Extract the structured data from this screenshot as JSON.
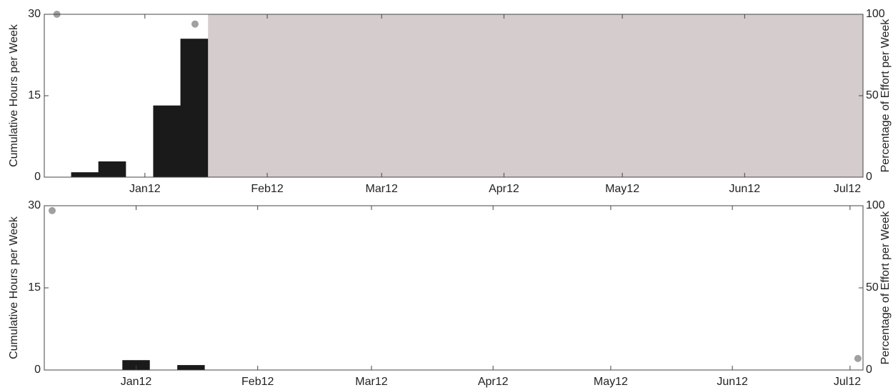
{
  "chart_data": [
    {
      "type": "bar",
      "ylabel": "Cumulative Hours per Week",
      "y2label": "Percentage of Effort per Week",
      "xlim": [
        -25.5,
        182
      ],
      "xticks": [
        {
          "value": 0,
          "label": "Jan12"
        },
        {
          "value": 31,
          "label": "Feb12"
        },
        {
          "value": 60,
          "label": "Mar12"
        },
        {
          "value": 91,
          "label": "Apr12"
        },
        {
          "value": 121,
          "label": "May12"
        },
        {
          "value": 152,
          "label": "Jun12"
        },
        {
          "value": 182,
          "label": "Jul12"
        }
      ],
      "ylim": [
        0,
        30
      ],
      "yticks": [
        0,
        15,
        30
      ],
      "y2lim": [
        0,
        100
      ],
      "y2ticks": [
        0,
        50,
        100
      ],
      "shaded_xrange": [
        16,
        182
      ],
      "shade_color": "#d5cdcd",
      "series": [
        {
          "type": "bar",
          "color": "#1a1a1a",
          "x": [
            -15.2,
            -8.3,
            5.6,
            12.5
          ],
          "values": [
            0.9,
            2.9,
            13.2,
            25.5
          ]
        },
        {
          "type": "scatter",
          "color": "#a0a0a0",
          "axis": "y2",
          "x": [
            -22.3,
            12.7
          ],
          "values": [
            100,
            94
          ]
        }
      ]
    },
    {
      "type": "bar",
      "ylabel": "Cumulative Hours per Week",
      "y2label": "Percentage of Effort per Week",
      "xlim": [
        -23.4,
        185.3
      ],
      "xticks": [
        {
          "value": 0,
          "label": "Jan12"
        },
        {
          "value": 31,
          "label": "Feb12"
        },
        {
          "value": 60,
          "label": "Mar12"
        },
        {
          "value": 91,
          "label": "Apr12"
        },
        {
          "value": 121,
          "label": "May12"
        },
        {
          "value": 152,
          "label": "Jun12"
        },
        {
          "value": 182,
          "label": "Jul12"
        }
      ],
      "ylim": [
        0,
        30
      ],
      "yticks": [
        0,
        15,
        30
      ],
      "y2lim": [
        0,
        100
      ],
      "y2ticks": [
        0,
        50,
        100
      ],
      "series": [
        {
          "type": "bar",
          "color": "#1a1a1a",
          "x": [
            0,
            14
          ],
          "values": [
            1.8,
            0.9
          ]
        },
        {
          "type": "scatter",
          "color": "#a0a0a0",
          "axis": "y2",
          "x": [
            -21.4,
            184
          ],
          "values": [
            97,
            7
          ]
        }
      ]
    }
  ]
}
